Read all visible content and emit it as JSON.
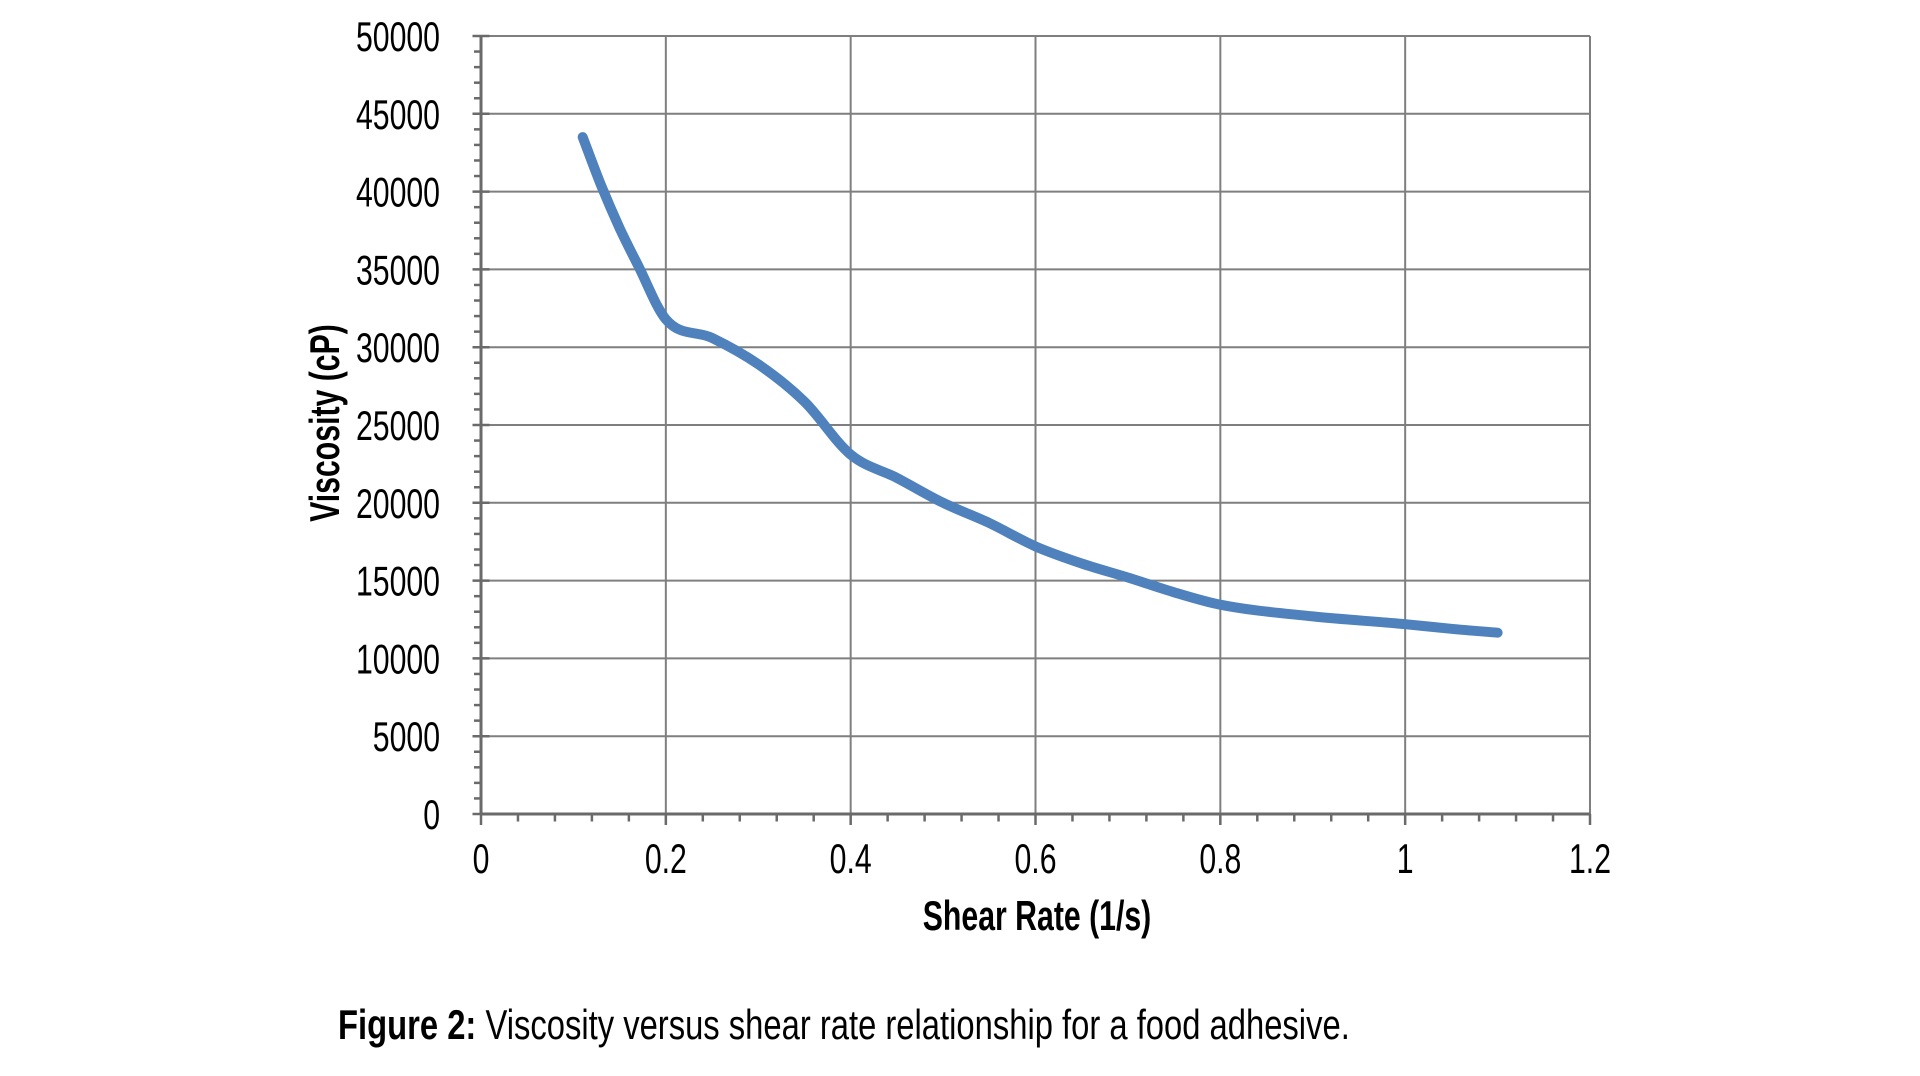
{
  "chart_data": {
    "type": "line",
    "title": "",
    "xlabel": "Shear Rate (1/s)",
    "ylabel": "Viscosity (cP)",
    "xlim": [
      0,
      1.2
    ],
    "ylim": [
      0,
      50000
    ],
    "grid": true,
    "legend": "none",
    "x_ticks": [
      0,
      0.2,
      0.4,
      0.6,
      0.8,
      1,
      1.2
    ],
    "x_tick_labels": [
      "0",
      "0.2",
      "0.4",
      "0.6",
      "0.8",
      "1",
      "1.2"
    ],
    "y_ticks": [
      0,
      5000,
      10000,
      15000,
      20000,
      25000,
      30000,
      35000,
      40000,
      45000,
      50000
    ],
    "y_tick_labels": [
      "0",
      "5000",
      "10000",
      "15000",
      "20000",
      "25000",
      "30000",
      "35000",
      "40000",
      "45000",
      "50000"
    ],
    "x_minor_step": 0.04,
    "y_minor_step": 1000,
    "series": [
      {
        "name": "Viscosity vs shear rate",
        "x": [
          0.11,
          0.13,
          0.15,
          0.17,
          0.2,
          0.25,
          0.3,
          0.35,
          0.4,
          0.45,
          0.5,
          0.55,
          0.6,
          0.65,
          0.7,
          0.75,
          0.8,
          0.9,
          1.0,
          1.05,
          1.1
        ],
        "y": [
          43500,
          40400,
          37650,
          35250,
          31800,
          30600,
          28900,
          26500,
          23100,
          21600,
          20000,
          18700,
          17200,
          16100,
          15200,
          14250,
          13450,
          12700,
          12200,
          11900,
          11650
        ]
      }
    ],
    "colors": {
      "line": "#4F81BD",
      "gridline": "#7F7F7F",
      "axis": "#6A6A6A",
      "text": "#000000",
      "background": "#FFFFFF"
    }
  },
  "caption": {
    "prefix": "Figure 2:",
    "text": " Viscosity versus shear rate relationship for a food adhesive."
  }
}
